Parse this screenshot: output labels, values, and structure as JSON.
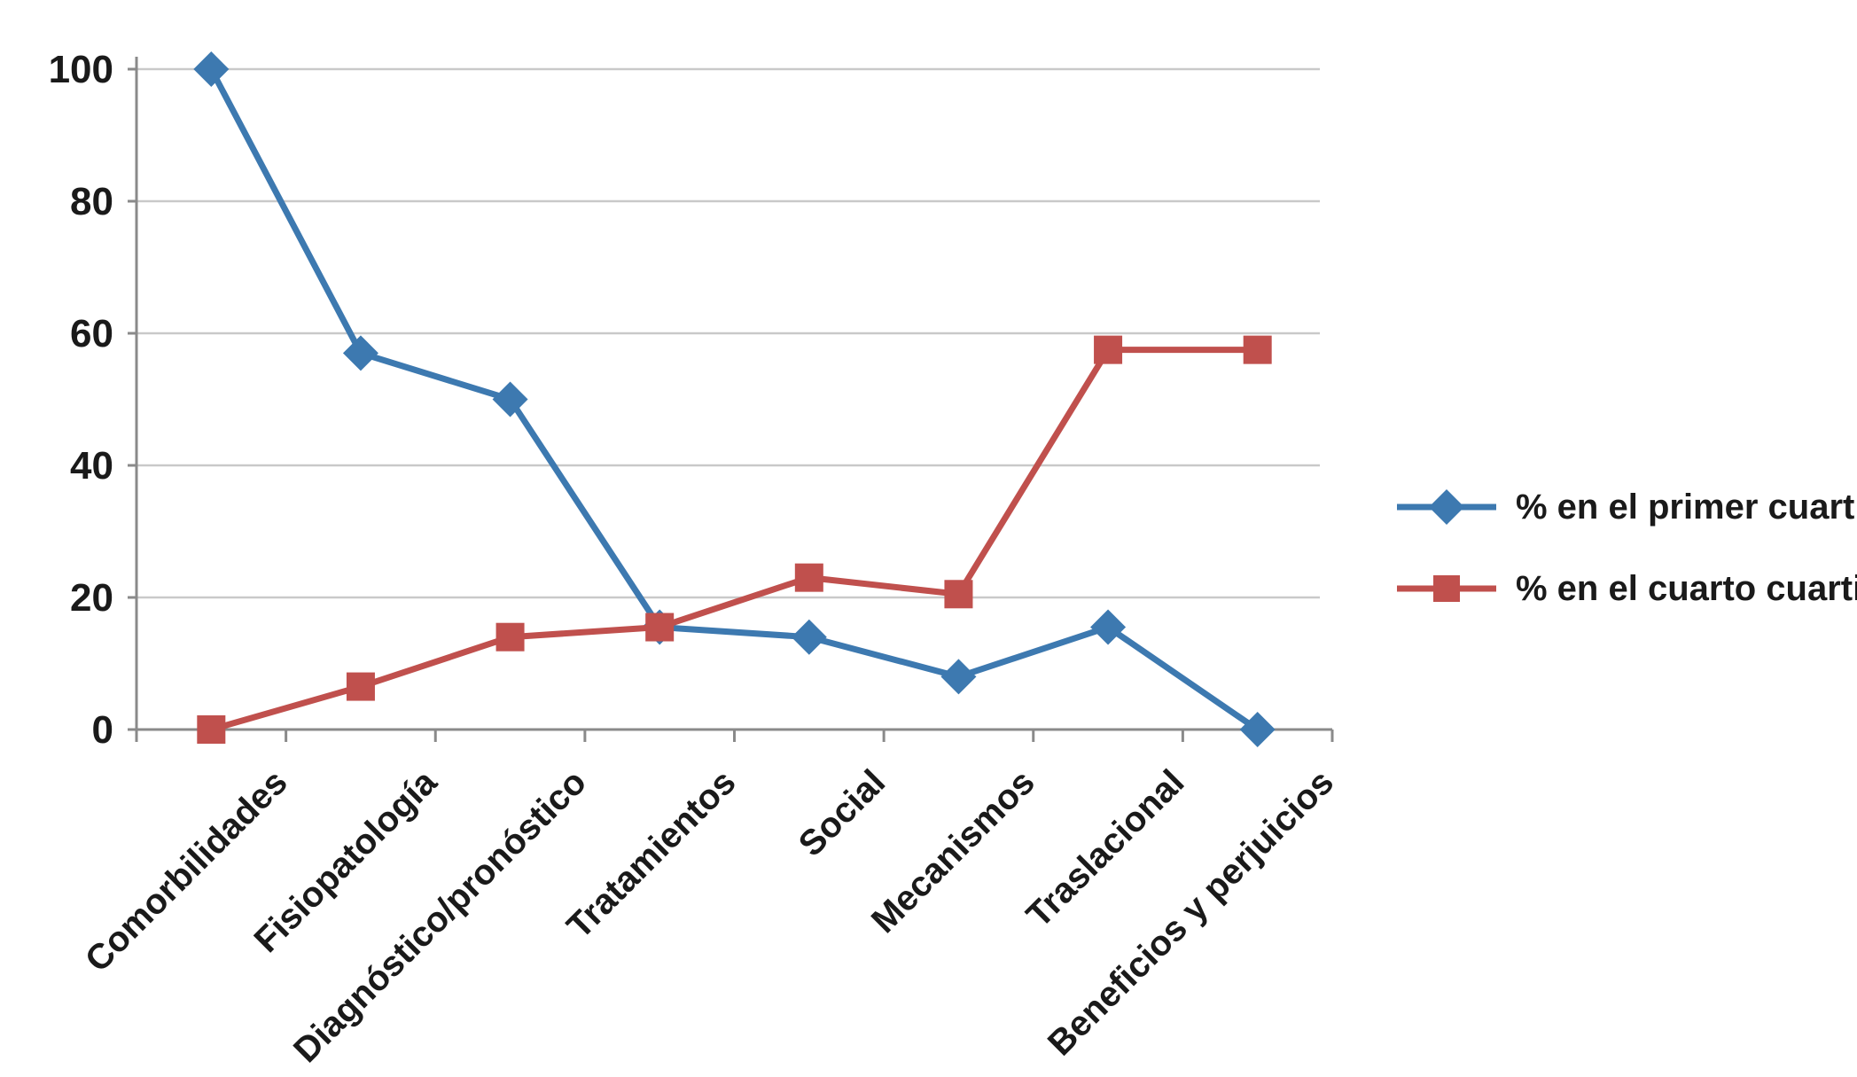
{
  "chart_data": {
    "type": "line",
    "title": "",
    "xlabel": "",
    "ylabel": "",
    "grid": true,
    "legend_position": "right",
    "ylim": [
      0,
      100
    ],
    "yticks": [
      0,
      20,
      40,
      60,
      80,
      100
    ],
    "categories": [
      "Comorbilidades",
      "Fisiopatología",
      "Diagnóstico/pronóstico",
      "Tratamientos",
      "Social",
      "Mecanismos",
      "Traslacional",
      "Beneficios y perjuicios"
    ],
    "series": [
      {
        "name": "% en el primer cuartil",
        "color": "#3D79B0",
        "marker": "diamond",
        "values": [
          100,
          57,
          50,
          15.5,
          14,
          8,
          15.5,
          0
        ]
      },
      {
        "name": "% en el cuarto cuartil",
        "color": "#C0504D",
        "marker": "square",
        "values": [
          0,
          6.5,
          14,
          15.5,
          23,
          20.5,
          57.5,
          57.5
        ]
      }
    ]
  },
  "style": {
    "grid_color": "#C9C9C9",
    "axis_color": "#8A8A8A",
    "text_color": "#1A1A1A",
    "background": "#FFFFFF"
  }
}
